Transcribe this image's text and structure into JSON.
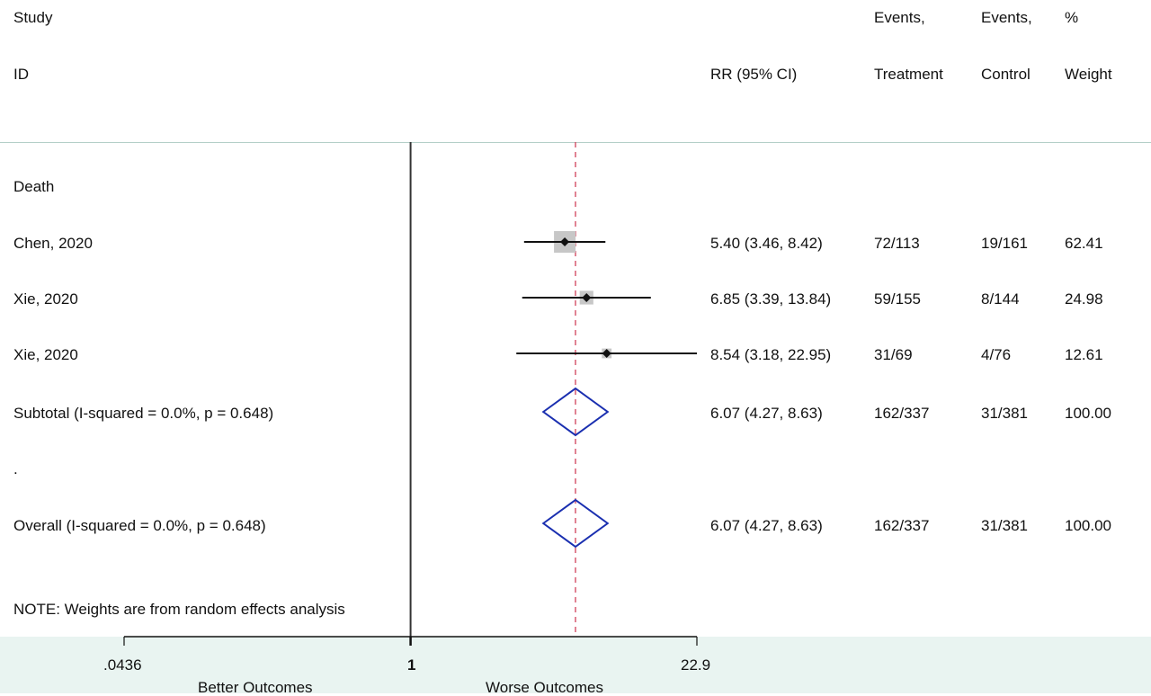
{
  "header": {
    "study_line1": "Study",
    "study_line2": "ID",
    "effect_label": "RR (95% CI)",
    "treat_line1": "Events,",
    "treat_line2": "Treatment",
    "control_line1": "Events,",
    "control_line2": "Control",
    "weight_line1": "%",
    "weight_line2": "Weight"
  },
  "group_label": "Death",
  "spacer_label": ".",
  "note": "NOTE: Weights are from random effects analysis",
  "colors": {
    "point": "#111111",
    "weight_box": "#c7c7c7",
    "diamond": "#1a2fb0",
    "null_line": "#333333",
    "ref_line": "#d0405a",
    "band": "#e9f4f1"
  },
  "chart_data": {
    "type": "forest",
    "measure": "RR",
    "scale": "log",
    "xlim": [
      0.0436,
      22.9
    ],
    "null_value": 1,
    "ref_value": 6.07,
    "ticks": [
      {
        "value": 0.0436,
        "label": ".0436"
      },
      {
        "value": 1,
        "label": "1"
      },
      {
        "value": 22.9,
        "label": "22.9"
      }
    ],
    "axis_left_label": "Better Outcomes",
    "axis_right_label": "Worse Outcomes",
    "studies": [
      {
        "id": "Chen, 2020",
        "rr": 5.4,
        "lo": 3.46,
        "hi": 8.42,
        "ci_text": "5.40 (3.46, 8.42)",
        "treat": "72/113",
        "control": "19/161",
        "weight": 62.41,
        "weight_text": "62.41",
        "arrow_right": false
      },
      {
        "id": "Xie, 2020",
        "rr": 6.85,
        "lo": 3.39,
        "hi": 13.84,
        "ci_text": "6.85 (3.39, 13.84)",
        "treat": "59/155",
        "control": "8/144",
        "weight": 24.98,
        "weight_text": "24.98",
        "arrow_right": false
      },
      {
        "id": "Xie, 2020",
        "rr": 8.54,
        "lo": 3.18,
        "hi": 22.95,
        "ci_text": "8.54 (3.18, 22.95)",
        "treat": "31/69",
        "control": "4/76",
        "weight": 12.61,
        "weight_text": "12.61",
        "arrow_right": true
      }
    ],
    "subtotal": {
      "label": "Subtotal  (I-squared = 0.0%, p = 0.648)",
      "rr": 6.07,
      "lo": 4.27,
      "hi": 8.63,
      "ci_text": "6.07 (4.27, 8.63)",
      "treat": "162/337",
      "control": "31/381",
      "weight_text": "100.00"
    },
    "overall": {
      "label": "Overall  (I-squared = 0.0%, p = 0.648)",
      "rr": 6.07,
      "lo": 4.27,
      "hi": 8.63,
      "ci_text": "6.07 (4.27, 8.63)",
      "treat": "162/337",
      "control": "31/381",
      "weight_text": "100.00"
    }
  }
}
